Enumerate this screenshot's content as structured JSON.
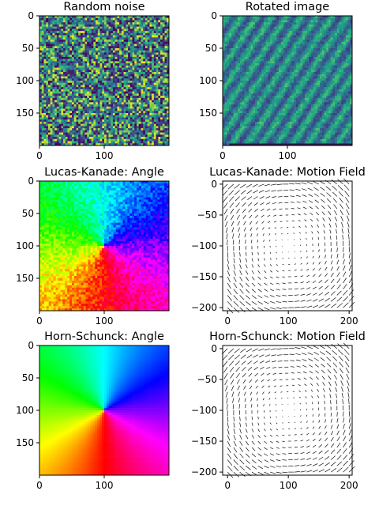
{
  "chart_data": [
    {
      "type": "heatmap",
      "title": "Random noise",
      "colormap": "viridis",
      "content": "uniform random noise",
      "x_ticks": [
        "0",
        "100"
      ],
      "y_ticks": [
        "0",
        "50",
        "100",
        "150"
      ],
      "xlim": [
        0,
        200
      ],
      "ylim": [
        200,
        0
      ]
    },
    {
      "type": "heatmap",
      "title": "Rotated image",
      "colormap": "viridis",
      "content": "noise image rotated (smoothed texture)",
      "x_ticks": [
        "0",
        "100"
      ],
      "y_ticks": [
        "0",
        "50",
        "100",
        "150"
      ],
      "xlim": [
        0,
        200
      ],
      "ylim": [
        200,
        0
      ]
    },
    {
      "type": "heatmap",
      "title": "Lucas-Kanade: Angle",
      "colormap": "hsv",
      "content": "flow angle around center (100,100), noisy",
      "center": [
        100,
        100
      ],
      "x_ticks": [
        "0",
        "100"
      ],
      "y_ticks": [
        "0",
        "50",
        "100",
        "150"
      ],
      "xlim": [
        0,
        200
      ],
      "ylim": [
        200,
        0
      ]
    },
    {
      "type": "quiver",
      "title": "Lucas-Kanade: Motion Field",
      "x_ticks": [
        "0",
        "100",
        "200"
      ],
      "y_ticks": [
        "0",
        "−50",
        "−100",
        "−150",
        "−200"
      ],
      "xlim": [
        -8,
        205
      ],
      "ylim": [
        -205,
        5
      ],
      "center": [
        100,
        -100
      ],
      "grid_step": 10,
      "rotation": "counterclockwise swirl, magnitude grows with radius"
    },
    {
      "type": "heatmap",
      "title": "Horn-Schunck: Angle",
      "colormap": "hsv",
      "content": "flow angle around center (100,100), smooth",
      "center": [
        100,
        100
      ],
      "x_ticks": [
        "0",
        "100"
      ],
      "y_ticks": [
        "0",
        "50",
        "100",
        "150"
      ],
      "xlim": [
        0,
        200
      ],
      "ylim": [
        200,
        0
      ]
    },
    {
      "type": "quiver",
      "title": "Horn-Schunck: Motion Field",
      "x_ticks": [
        "0",
        "100",
        "200"
      ],
      "y_ticks": [
        "0",
        "−50",
        "−100",
        "−150",
        "−200"
      ],
      "xlim": [
        -8,
        205
      ],
      "ylim": [
        -205,
        5
      ],
      "center": [
        100,
        -100
      ],
      "grid_step": 10,
      "rotation": "counterclockwise swirl, magnitude grows with radius"
    }
  ]
}
